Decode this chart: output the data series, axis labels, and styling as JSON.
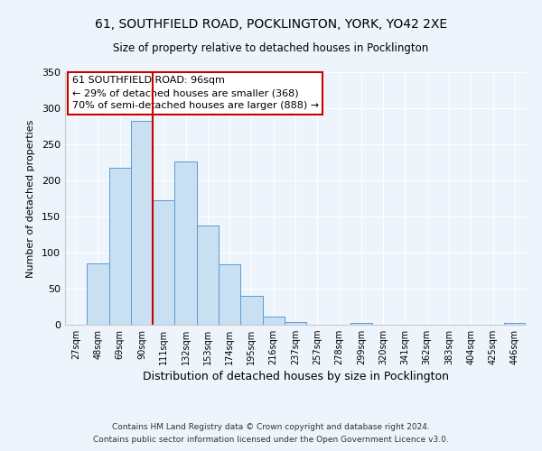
{
  "title": "61, SOUTHFIELD ROAD, POCKLINGTON, YORK, YO42 2XE",
  "subtitle": "Size of property relative to detached houses in Pocklington",
  "xlabel": "Distribution of detached houses by size in Pocklington",
  "ylabel": "Number of detached properties",
  "bar_labels": [
    "27sqm",
    "48sqm",
    "69sqm",
    "90sqm",
    "111sqm",
    "132sqm",
    "153sqm",
    "174sqm",
    "195sqm",
    "216sqm",
    "237sqm",
    "257sqm",
    "278sqm",
    "299sqm",
    "320sqm",
    "341sqm",
    "362sqm",
    "383sqm",
    "404sqm",
    "425sqm",
    "446sqm"
  ],
  "bar_values": [
    0,
    85,
    217,
    283,
    173,
    226,
    137,
    84,
    40,
    11,
    4,
    0,
    0,
    3,
    0,
    0,
    0,
    0,
    0,
    0,
    2
  ],
  "bar_width": 1.0,
  "bar_face_color": "#c9dff2",
  "bar_edge_color": "#5b9bd5",
  "vline_x": 3.5,
  "vline_color": "#cc0000",
  "annotation_line1": "61 SOUTHFIELD ROAD: 96sqm",
  "annotation_line2": "← 29% of detached houses are smaller (368)",
  "annotation_line3": "70% of semi-detached houses are larger (888) →",
  "ylim": [
    0,
    350
  ],
  "yticks": [
    0,
    50,
    100,
    150,
    200,
    250,
    300,
    350
  ],
  "bg_color": "#eef4fc",
  "plot_bg_color": "#eef4fc",
  "grid_color": "#ffffff",
  "footer1": "Contains HM Land Registry data © Crown copyright and database right 2024.",
  "footer2": "Contains public sector information licensed under the Open Government Licence v3.0."
}
